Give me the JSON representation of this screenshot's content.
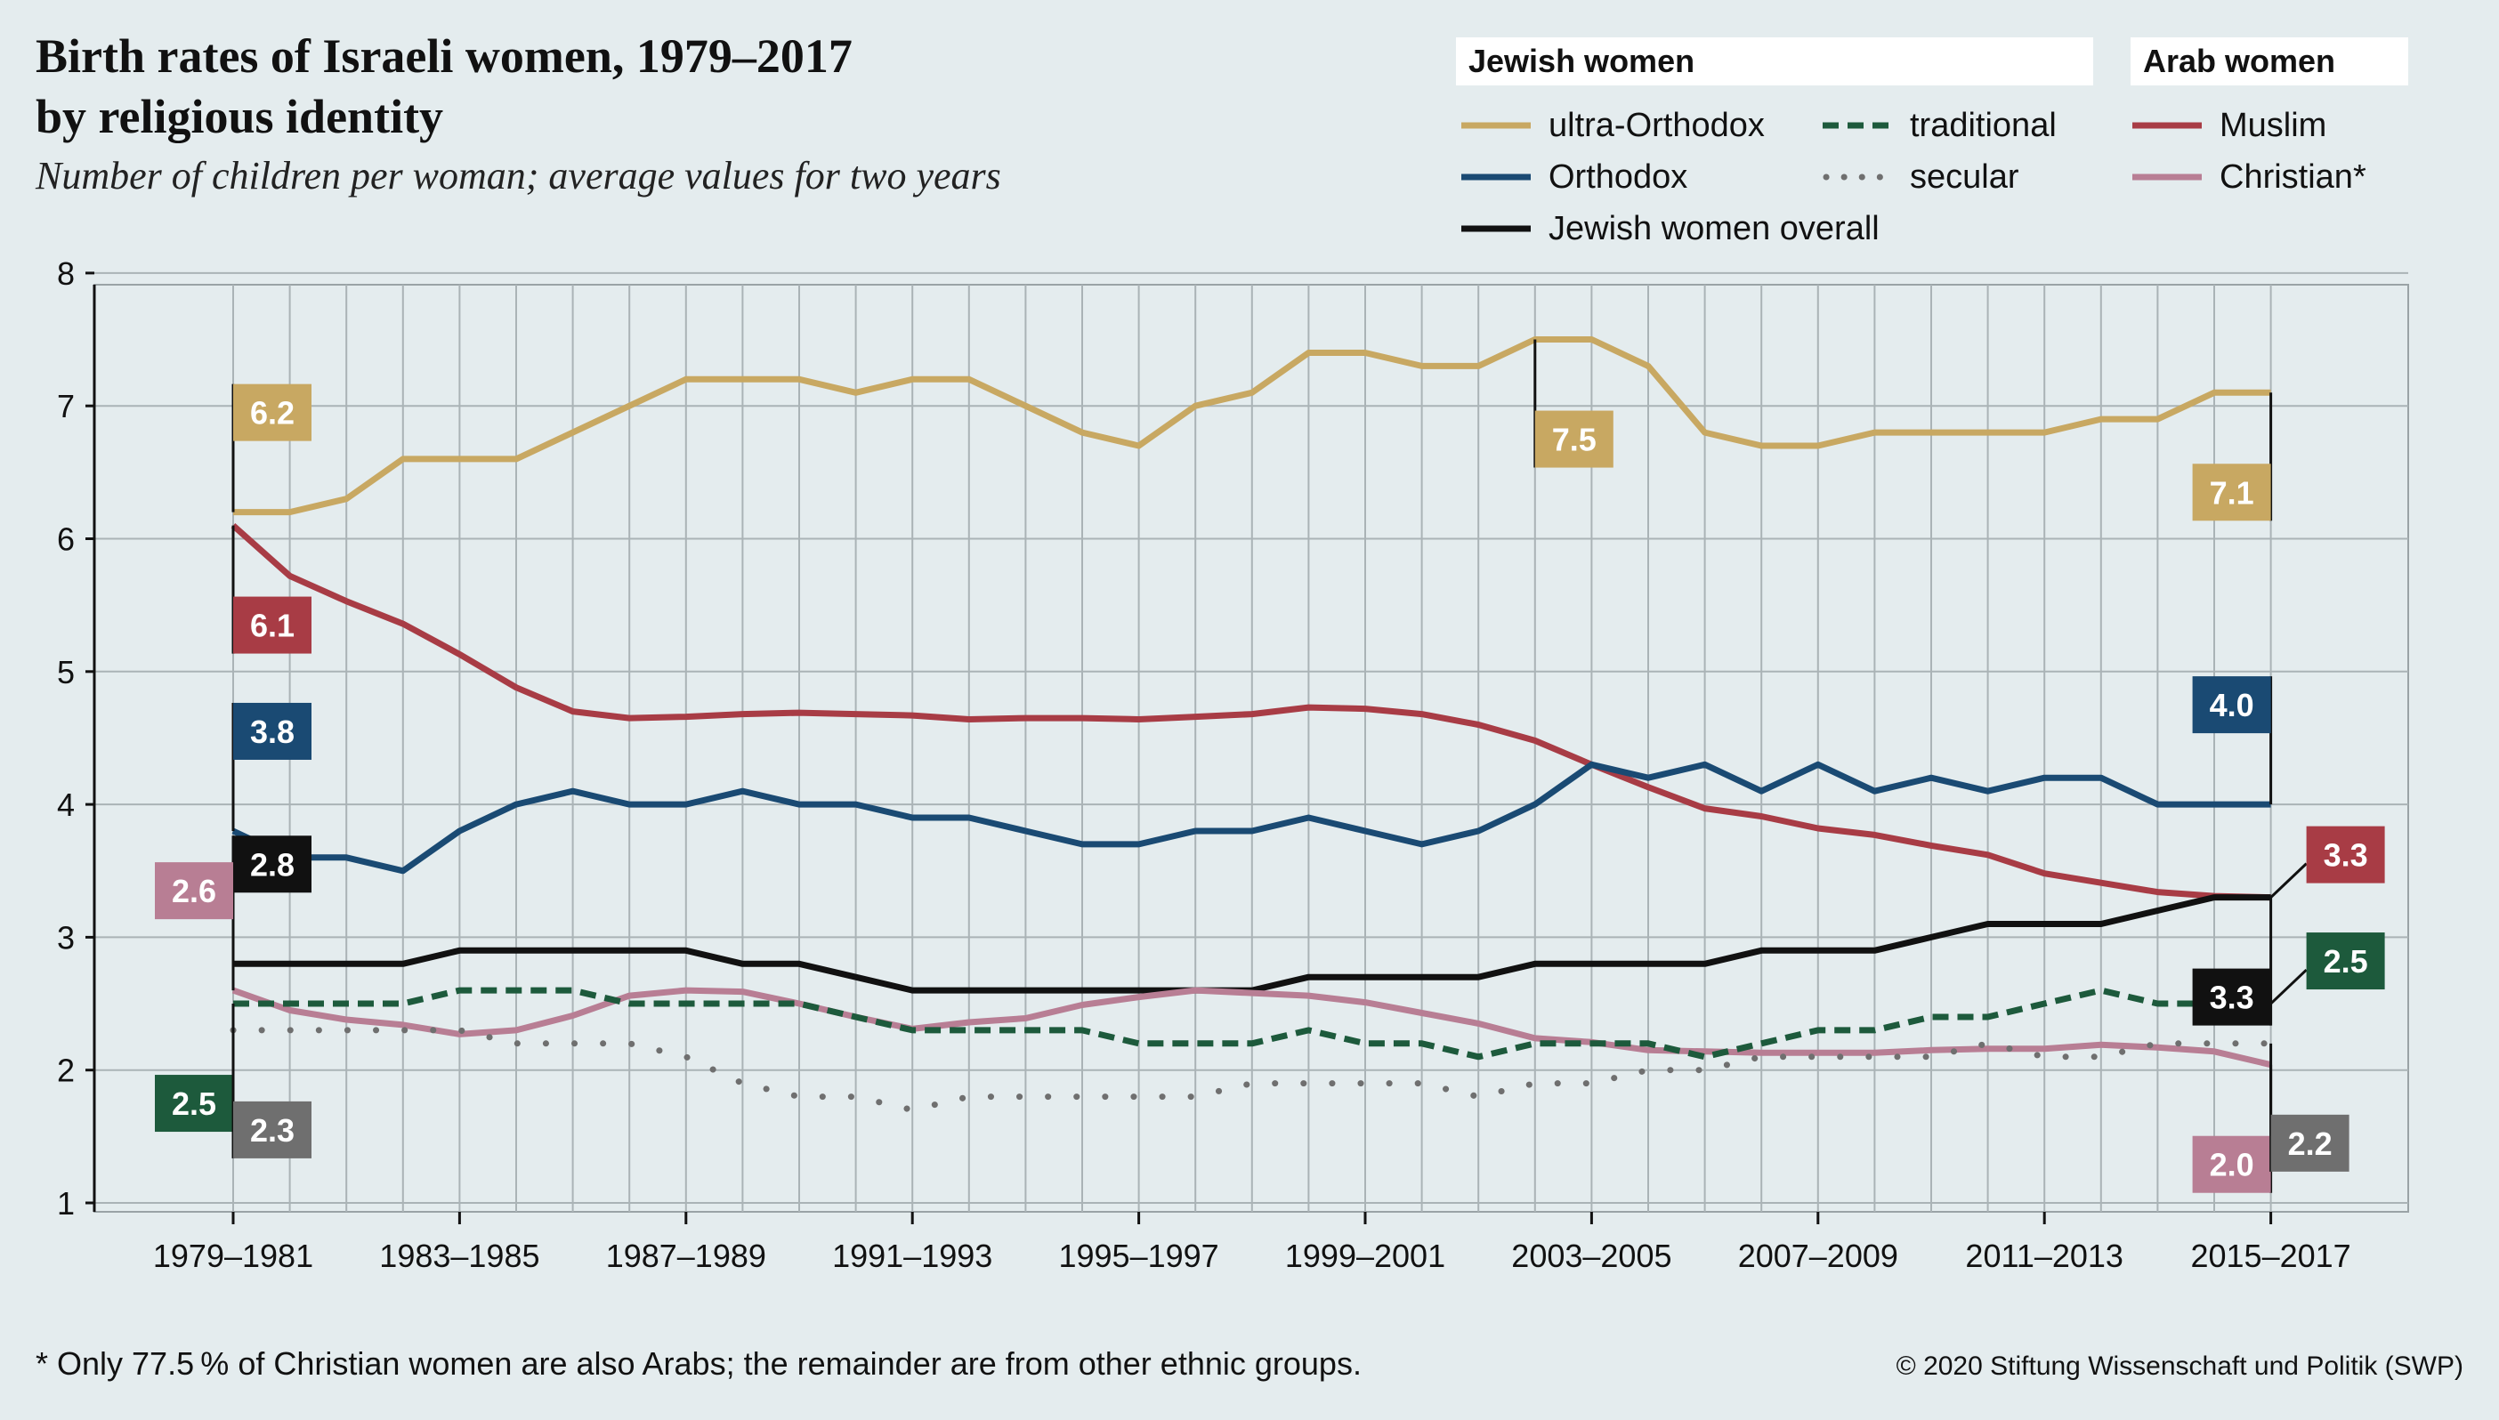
{
  "header": {
    "title": "Birth rates of Israeli women, 1979–2017",
    "subtitle": "by religious identity",
    "note": "Number of children per woman; average values for two years"
  },
  "legend": {
    "jewish_heading": "Jewish women",
    "arab_heading": "Arab women",
    "items": {
      "ultra": "ultra-Orthodox",
      "orthodox": "Orthodox",
      "overall": "Jewish women overall",
      "traditional": "traditional",
      "secular": "secular",
      "muslim": "Muslim",
      "christian": "Christian*"
    }
  },
  "footer": {
    "footnote": "* Only 77.5 % of Christian women are also Arabs; the remainder are from other ethnic groups.",
    "copyright": "© 2020 Stiftung Wissenschaft und Politik (SWP)"
  },
  "chart_data": {
    "type": "line",
    "ylim": [
      1,
      8
    ],
    "yticks": [
      1,
      2,
      3,
      4,
      5,
      6,
      7,
      8
    ],
    "x_count": 37,
    "x_tick_labels": [
      "1979–1981",
      "1983–1985",
      "1987–1989",
      "1991–1993",
      "1995–1997",
      "1999–2001",
      "2003–2005",
      "2007–2009",
      "2011–2013",
      "2015–2017"
    ],
    "x_tick_indices": [
      0,
      4,
      8,
      12,
      16,
      20,
      24,
      28,
      32,
      36
    ],
    "grid": true,
    "legend_position": "top-right",
    "series": [
      {
        "key": "ultra",
        "name": "ultra-Orthodox",
        "color": "#c8a862",
        "style": "solid",
        "values": [
          6.2,
          6.2,
          6.3,
          6.6,
          6.6,
          6.6,
          6.8,
          7.0,
          7.2,
          7.2,
          7.2,
          7.1,
          7.2,
          7.2,
          7.0,
          6.8,
          6.7,
          7.0,
          7.1,
          7.4,
          7.4,
          7.3,
          7.3,
          7.5,
          7.5,
          7.3,
          6.8,
          6.7,
          6.7,
          6.8,
          6.8,
          6.8,
          6.8,
          6.9,
          6.9,
          7.1,
          7.1
        ]
      },
      {
        "key": "muslim",
        "name": "Muslim",
        "color": "#a83c45",
        "style": "solid",
        "values": [
          6.1,
          5.72,
          5.53,
          5.36,
          5.13,
          4.88,
          4.7,
          4.65,
          4.66,
          4.68,
          4.69,
          4.68,
          4.67,
          4.64,
          4.65,
          4.65,
          4.64,
          4.66,
          4.68,
          4.73,
          4.72,
          4.68,
          4.6,
          4.48,
          4.3,
          4.13,
          3.97,
          3.91,
          3.82,
          3.77,
          3.69,
          3.62,
          3.48,
          3.41,
          3.34,
          3.31,
          3.3
        ]
      },
      {
        "key": "orthodox",
        "name": "Orthodox",
        "color": "#1a4a73",
        "style": "solid",
        "values": [
          3.8,
          3.6,
          3.6,
          3.5,
          3.8,
          4.0,
          4.1,
          4.0,
          4.0,
          4.1,
          4.0,
          4.0,
          3.9,
          3.9,
          3.8,
          3.7,
          3.7,
          3.8,
          3.8,
          3.9,
          3.8,
          3.7,
          3.8,
          4.0,
          4.3,
          4.2,
          4.3,
          4.1,
          4.3,
          4.1,
          4.2,
          4.1,
          4.2,
          4.2,
          4.0,
          4.0,
          4.0
        ]
      },
      {
        "key": "overall",
        "name": "Jewish women overall",
        "color": "#111111",
        "style": "solid",
        "values": [
          2.8,
          2.8,
          2.8,
          2.8,
          2.9,
          2.9,
          2.9,
          2.9,
          2.9,
          2.8,
          2.8,
          2.7,
          2.6,
          2.6,
          2.6,
          2.6,
          2.6,
          2.6,
          2.6,
          2.7,
          2.7,
          2.7,
          2.7,
          2.8,
          2.8,
          2.8,
          2.8,
          2.9,
          2.9,
          2.9,
          3.0,
          3.1,
          3.1,
          3.1,
          3.2,
          3.3,
          3.3
        ]
      },
      {
        "key": "christian",
        "name": "Christian*",
        "color": "#b87e94",
        "style": "solid",
        "values": [
          2.6,
          2.45,
          2.38,
          2.34,
          2.27,
          2.3,
          2.41,
          2.56,
          2.6,
          2.59,
          2.5,
          2.4,
          2.31,
          2.36,
          2.39,
          2.49,
          2.55,
          2.6,
          2.58,
          2.56,
          2.51,
          2.43,
          2.35,
          2.24,
          2.21,
          2.15,
          2.14,
          2.13,
          2.13,
          2.13,
          2.15,
          2.16,
          2.16,
          2.19,
          2.17,
          2.14,
          2.04
        ]
      },
      {
        "key": "traditional",
        "name": "traditional",
        "color": "#1d5a3c",
        "style": "dashed",
        "values": [
          2.5,
          2.5,
          2.5,
          2.5,
          2.6,
          2.6,
          2.6,
          2.5,
          2.5,
          2.5,
          2.5,
          2.4,
          2.3,
          2.3,
          2.3,
          2.3,
          2.2,
          2.2,
          2.2,
          2.3,
          2.2,
          2.2,
          2.1,
          2.2,
          2.2,
          2.2,
          2.1,
          2.2,
          2.3,
          2.3,
          2.4,
          2.4,
          2.5,
          2.6,
          2.5,
          2.5,
          2.5
        ]
      },
      {
        "key": "secular",
        "name": "secular",
        "color": "#6f6f6f",
        "style": "dotted",
        "values": [
          2.3,
          2.3,
          2.3,
          2.3,
          2.3,
          2.2,
          2.2,
          2.2,
          2.1,
          1.9,
          1.8,
          1.8,
          1.7,
          1.8,
          1.8,
          1.8,
          1.8,
          1.8,
          1.9,
          1.9,
          1.9,
          1.9,
          1.8,
          1.9,
          1.9,
          2.0,
          2.0,
          2.1,
          2.1,
          2.1,
          2.1,
          2.2,
          2.1,
          2.1,
          2.2,
          2.2,
          2.2
        ]
      }
    ],
    "annotations": [
      {
        "series": "ultra",
        "label": "6.2",
        "x_index": 0,
        "box_side": "above",
        "box_color": "#c8a862",
        "text_color": "#ffffff"
      },
      {
        "series": "ultra",
        "label": "7.5",
        "x_index": 23,
        "box_side": "below-right",
        "box_color": "#c8a862",
        "text_color": "#ffffff"
      },
      {
        "series": "ultra",
        "label": "7.1",
        "x_index": 36,
        "box_side": "below-left",
        "box_color": "#c8a862",
        "text_color": "#ffffff"
      },
      {
        "series": "muslim",
        "label": "6.1",
        "x_index": 0,
        "box_side": "below",
        "box_color": "#a83c45",
        "text_color": "#ffffff"
      },
      {
        "series": "muslim",
        "label": "3.3",
        "x_index": 36,
        "box_side": "above-right",
        "box_color": "#a83c45",
        "text_color": "#ffffff"
      },
      {
        "series": "orthodox",
        "label": "3.8",
        "x_index": 0,
        "box_side": "above",
        "box_color": "#1a4a73",
        "text_color": "#ffffff"
      },
      {
        "series": "orthodox",
        "label": "4.0",
        "x_index": 36,
        "box_side": "above-left",
        "box_color": "#1a4a73",
        "text_color": "#ffffff"
      },
      {
        "series": "overall",
        "label": "2.8",
        "x_index": 0,
        "box_side": "above",
        "box_color": "#111111",
        "text_color": "#ffffff"
      },
      {
        "series": "overall",
        "label": "3.3",
        "x_index": 36,
        "box_side": "below-left",
        "box_color": "#111111",
        "text_color": "#ffffff"
      },
      {
        "series": "christian",
        "label": "2.6",
        "x_index": 0,
        "box_side": "above-left",
        "box_color": "#b87e94",
        "text_color": "#ffffff"
      },
      {
        "series": "christian",
        "label": "2.0",
        "x_index": 36,
        "box_side": "below-left",
        "box_color": "#b87e94",
        "text_color": "#ffffff"
      },
      {
        "series": "traditional",
        "label": "2.5",
        "x_index": 0,
        "box_side": "below-left",
        "box_color": "#1d5a3c",
        "text_color": "#ffffff"
      },
      {
        "series": "traditional",
        "label": "2.5",
        "x_index": 36,
        "box_side": "above-right",
        "box_color": "#1d5a3c",
        "text_color": "#ffffff"
      },
      {
        "series": "secular",
        "label": "2.3",
        "x_index": 0,
        "box_side": "below",
        "box_color": "#6f6f6f",
        "text_color": "#ffffff"
      },
      {
        "series": "secular",
        "label": "2.2",
        "x_index": 36,
        "box_side": "below-right",
        "box_color": "#6f6f6f",
        "text_color": "#ffffff"
      }
    ]
  }
}
